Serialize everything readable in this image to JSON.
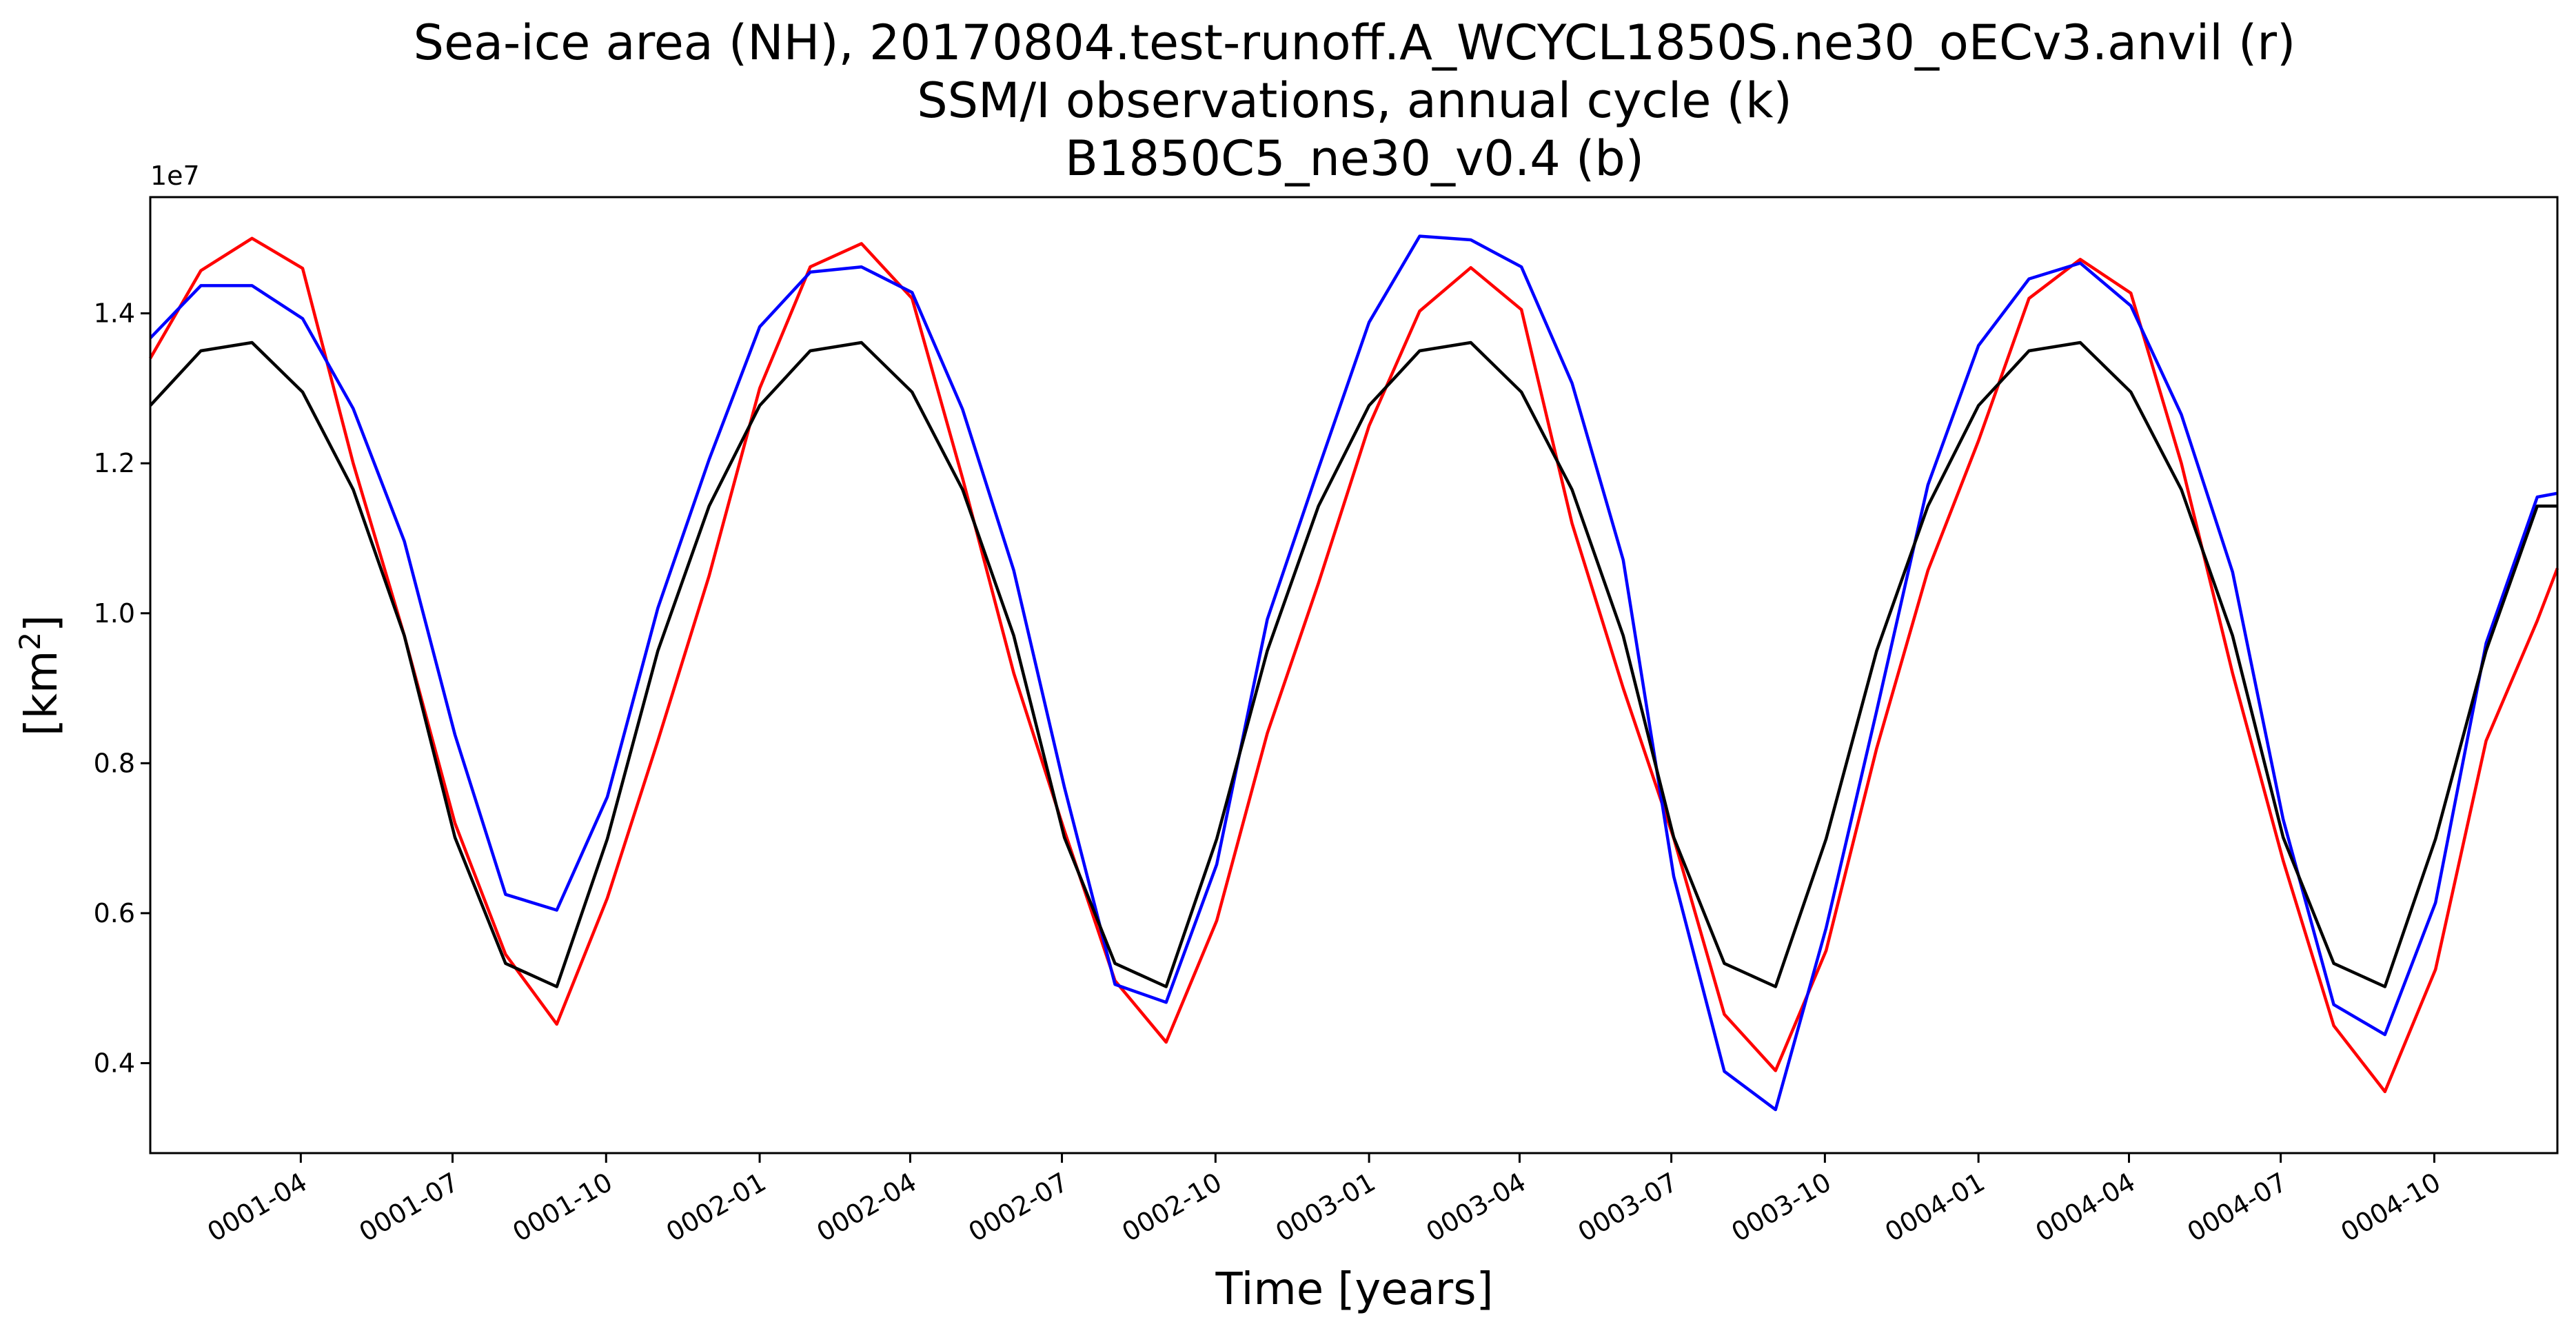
{
  "chart_data": {
    "type": "line",
    "title_lines": [
      "Sea-ice area (NH), 20170804.test-runoff.A_WCYCL1850S.ne30_oECv3.anvil (r)",
      "SSM/I observations, annual cycle (k)",
      "B1850C5_ne30_v0.4 (b)"
    ],
    "xlabel": "Time [years]",
    "ylabel_base": "[km",
    "ylabel_sup": "2",
    "ylabel_end": "]",
    "y_offset_label": "1e7",
    "x_unit": "years",
    "xlim": [
      0.0,
      3.95
    ],
    "ylim": [
      0.28,
      1.555
    ],
    "x_ticks": [
      {
        "value": 0.247,
        "label": "0001-04"
      },
      {
        "value": 0.496,
        "label": "0001-07"
      },
      {
        "value": 0.748,
        "label": "0001-10"
      },
      {
        "value": 1.0,
        "label": "0002-01"
      },
      {
        "value": 1.247,
        "label": "0002-04"
      },
      {
        "value": 1.496,
        "label": "0002-07"
      },
      {
        "value": 1.748,
        "label": "0002-10"
      },
      {
        "value": 2.0,
        "label": "0003-01"
      },
      {
        "value": 2.247,
        "label": "0003-04"
      },
      {
        "value": 2.496,
        "label": "0003-07"
      },
      {
        "value": 2.748,
        "label": "0003-10"
      },
      {
        "value": 3.0,
        "label": "0004-01"
      },
      {
        "value": 3.247,
        "label": "0004-04"
      },
      {
        "value": 3.496,
        "label": "0004-07"
      },
      {
        "value": 3.748,
        "label": "0004-10"
      }
    ],
    "y_ticks": [
      {
        "value": 0.4,
        "label": "0.4"
      },
      {
        "value": 0.6,
        "label": "0.6"
      },
      {
        "value": 0.8,
        "label": "0.8"
      },
      {
        "value": 1.0,
        "label": "1.0"
      },
      {
        "value": 1.2,
        "label": "1.2"
      },
      {
        "value": 1.4,
        "label": "1.4"
      }
    ],
    "x": [
      0.0,
      0.083,
      0.167,
      0.25,
      0.333,
      0.417,
      0.5,
      0.583,
      0.667,
      0.75,
      0.833,
      0.917,
      1.0,
      1.083,
      1.167,
      1.25,
      1.333,
      1.417,
      1.5,
      1.583,
      1.667,
      1.75,
      1.833,
      1.917,
      2.0,
      2.083,
      2.167,
      2.25,
      2.333,
      2.417,
      2.5,
      2.583,
      2.667,
      2.75,
      2.833,
      2.917,
      3.0,
      3.083,
      3.167,
      3.25,
      3.333,
      3.417,
      3.5,
      3.583,
      3.667,
      3.75,
      3.833,
      3.917,
      3.95
    ],
    "series": [
      {
        "color": "#ff0000",
        "values": [
          1.34,
          1.457,
          1.5,
          1.46,
          1.2,
          0.97,
          0.72,
          0.545,
          0.452,
          0.62,
          0.83,
          1.05,
          1.3,
          1.462,
          1.493,
          1.42,
          1.18,
          0.92,
          0.71,
          0.51,
          0.428,
          0.59,
          0.84,
          1.04,
          1.25,
          1.403,
          1.461,
          1.405,
          1.12,
          0.9,
          0.7,
          0.465,
          0.39,
          0.55,
          0.82,
          1.057,
          1.23,
          1.42,
          1.472,
          1.427,
          1.2,
          0.92,
          0.67,
          0.45,
          0.362,
          0.525,
          0.83,
          0.99,
          1.06
        ]
      },
      {
        "color": "#0000ff",
        "values": [
          1.367,
          1.437,
          1.437,
          1.393,
          1.273,
          1.096,
          0.838,
          0.625,
          0.604,
          0.755,
          1.007,
          1.205,
          1.382,
          1.455,
          1.462,
          1.428,
          1.272,
          1.057,
          0.768,
          0.505,
          0.481,
          0.665,
          0.992,
          1.193,
          1.388,
          1.503,
          1.498,
          1.462,
          1.307,
          1.071,
          0.649,
          0.389,
          0.338,
          0.58,
          0.87,
          1.171,
          1.357,
          1.446,
          1.467,
          1.41,
          1.265,
          1.055,
          0.725,
          0.478,
          0.438,
          0.614,
          0.96,
          1.155,
          1.16
        ]
      },
      {
        "color": "#000000",
        "values": [
          1.277,
          1.35,
          1.361,
          1.295,
          1.165,
          0.97,
          0.701,
          0.533,
          0.502,
          0.699,
          0.95,
          1.143,
          1.277,
          1.35,
          1.361,
          1.295,
          1.165,
          0.97,
          0.701,
          0.533,
          0.502,
          0.699,
          0.95,
          1.143,
          1.277,
          1.35,
          1.361,
          1.295,
          1.165,
          0.97,
          0.701,
          0.533,
          0.502,
          0.699,
          0.95,
          1.143,
          1.277,
          1.35,
          1.361,
          1.295,
          1.165,
          0.97,
          0.701,
          0.533,
          0.502,
          0.699,
          0.95,
          1.143,
          1.143
        ]
      }
    ]
  }
}
